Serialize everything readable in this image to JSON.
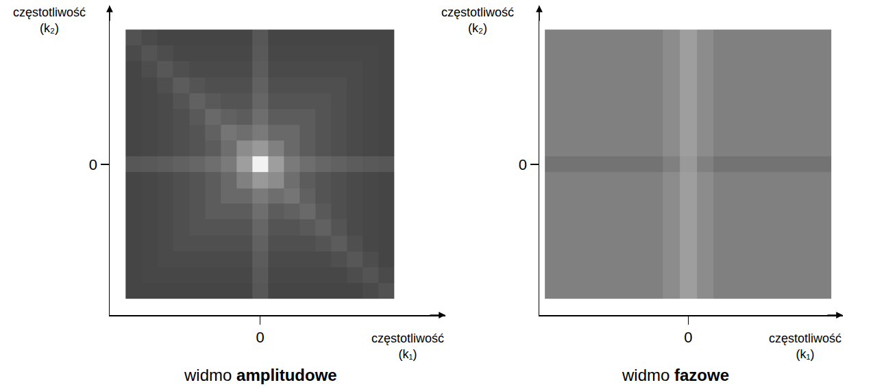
{
  "chart_data": [
    {
      "type": "heatmap",
      "title": "widmo amplitudowe",
      "xlabel": "częstotliwość (k₁)",
      "ylabel": "częstotliwość (k₂)",
      "xlim": [
        -0.56,
        0.69
      ],
      "ylim": [
        -0.56,
        0.59
      ],
      "xticks": [
        0
      ],
      "yticks": [
        0
      ],
      "grid": false,
      "zlim": [
        0,
        1
      ],
      "x": [
        -0.471,
        -0.412,
        -0.353,
        -0.294,
        -0.235,
        -0.176,
        -0.118,
        -0.059,
        0,
        0.059,
        0.118,
        0.176,
        0.235,
        0.294,
        0.353,
        0.412,
        0.471
      ],
      "y": [
        -0.471,
        -0.412,
        -0.353,
        -0.294,
        -0.235,
        -0.176,
        -0.118,
        -0.059,
        0,
        0.059,
        0.118,
        0.176,
        0.235,
        0.294,
        0.353,
        0.412,
        0.471
      ],
      "z": [
        [
          0.27,
          0.27,
          0.27,
          0.27,
          0.27,
          0.27,
          0.27,
          0.27,
          0.34,
          0.27,
          0.27,
          0.27,
          0.27,
          0.27,
          0.27,
          0.29,
          0.32
        ],
        [
          0.27,
          0.28,
          0.28,
          0.28,
          0.28,
          0.28,
          0.28,
          0.28,
          0.35,
          0.28,
          0.28,
          0.28,
          0.28,
          0.28,
          0.3,
          0.33,
          0.29
        ],
        [
          0.27,
          0.28,
          0.29,
          0.29,
          0.29,
          0.29,
          0.29,
          0.29,
          0.36,
          0.29,
          0.29,
          0.29,
          0.29,
          0.31,
          0.34,
          0.3,
          0.27
        ],
        [
          0.27,
          0.28,
          0.29,
          0.31,
          0.31,
          0.31,
          0.31,
          0.31,
          0.38,
          0.31,
          0.31,
          0.31,
          0.33,
          0.36,
          0.31,
          0.28,
          0.27
        ],
        [
          0.27,
          0.28,
          0.29,
          0.31,
          0.33,
          0.33,
          0.33,
          0.33,
          0.4,
          0.33,
          0.33,
          0.35,
          0.38,
          0.33,
          0.29,
          0.28,
          0.27
        ],
        [
          0.27,
          0.28,
          0.29,
          0.31,
          0.33,
          0.36,
          0.36,
          0.36,
          0.43,
          0.36,
          0.38,
          0.41,
          0.35,
          0.31,
          0.29,
          0.28,
          0.27
        ],
        [
          0.27,
          0.28,
          0.29,
          0.31,
          0.33,
          0.36,
          0.41,
          0.41,
          0.48,
          0.43,
          0.46,
          0.38,
          0.33,
          0.31,
          0.29,
          0.28,
          0.27
        ],
        [
          0.27,
          0.28,
          0.29,
          0.31,
          0.33,
          0.36,
          0.41,
          0.5,
          0.6,
          0.55,
          0.43,
          0.36,
          0.33,
          0.31,
          0.29,
          0.28,
          0.27
        ],
        [
          0.34,
          0.35,
          0.36,
          0.38,
          0.4,
          0.43,
          0.48,
          0.62,
          0.95,
          0.62,
          0.48,
          0.43,
          0.4,
          0.38,
          0.36,
          0.35,
          0.34
        ],
        [
          0.27,
          0.28,
          0.29,
          0.31,
          0.33,
          0.36,
          0.43,
          0.55,
          0.6,
          0.5,
          0.41,
          0.36,
          0.33,
          0.31,
          0.29,
          0.28,
          0.27
        ],
        [
          0.27,
          0.28,
          0.29,
          0.31,
          0.33,
          0.38,
          0.46,
          0.43,
          0.48,
          0.41,
          0.41,
          0.36,
          0.33,
          0.31,
          0.29,
          0.28,
          0.27
        ],
        [
          0.27,
          0.28,
          0.29,
          0.31,
          0.35,
          0.41,
          0.38,
          0.36,
          0.43,
          0.36,
          0.36,
          0.36,
          0.33,
          0.31,
          0.29,
          0.28,
          0.27
        ],
        [
          0.27,
          0.28,
          0.29,
          0.33,
          0.38,
          0.35,
          0.33,
          0.33,
          0.4,
          0.33,
          0.33,
          0.33,
          0.33,
          0.31,
          0.29,
          0.28,
          0.27
        ],
        [
          0.27,
          0.28,
          0.31,
          0.36,
          0.33,
          0.31,
          0.31,
          0.31,
          0.38,
          0.31,
          0.31,
          0.31,
          0.31,
          0.31,
          0.29,
          0.28,
          0.27
        ],
        [
          0.27,
          0.3,
          0.34,
          0.31,
          0.29,
          0.29,
          0.29,
          0.29,
          0.36,
          0.29,
          0.29,
          0.29,
          0.29,
          0.29,
          0.29,
          0.28,
          0.27
        ],
        [
          0.29,
          0.33,
          0.3,
          0.28,
          0.28,
          0.28,
          0.28,
          0.28,
          0.35,
          0.28,
          0.28,
          0.28,
          0.28,
          0.28,
          0.28,
          0.28,
          0.27
        ],
        [
          0.32,
          0.29,
          0.27,
          0.27,
          0.27,
          0.27,
          0.27,
          0.27,
          0.34,
          0.27,
          0.27,
          0.27,
          0.27,
          0.27,
          0.27,
          0.27,
          0.27
        ]
      ]
    },
    {
      "type": "heatmap",
      "title": "widmo fazowe",
      "xlabel": "częstotliwość (k₁)",
      "ylabel": "częstotliwość (k₂)",
      "xlim": [
        -0.52,
        0.54
      ],
      "ylim": [
        -0.56,
        0.59
      ],
      "xticks": [
        0
      ],
      "yticks": [
        0
      ],
      "grid": false,
      "zlim": [
        0,
        1
      ],
      "x": [
        -0.471,
        -0.412,
        -0.353,
        -0.294,
        -0.235,
        -0.176,
        -0.118,
        -0.059,
        0,
        0.059,
        0.118,
        0.176,
        0.235,
        0.294,
        0.353,
        0.412,
        0.471
      ],
      "y": [
        -0.471,
        -0.412,
        -0.353,
        -0.294,
        -0.235,
        -0.176,
        -0.118,
        -0.059,
        0,
        0.059,
        0.118,
        0.176,
        0.235,
        0.294,
        0.353,
        0.412,
        0.471
      ],
      "z": [
        [
          0.5,
          0.5,
          0.5,
          0.5,
          0.5,
          0.5,
          0.5,
          0.55,
          0.62,
          0.55,
          0.5,
          0.5,
          0.5,
          0.5,
          0.5,
          0.5,
          0.5
        ],
        [
          0.5,
          0.5,
          0.5,
          0.5,
          0.5,
          0.5,
          0.5,
          0.55,
          0.62,
          0.55,
          0.5,
          0.5,
          0.5,
          0.5,
          0.5,
          0.5,
          0.5
        ],
        [
          0.5,
          0.5,
          0.5,
          0.5,
          0.5,
          0.5,
          0.5,
          0.55,
          0.62,
          0.55,
          0.5,
          0.5,
          0.5,
          0.5,
          0.5,
          0.5,
          0.5
        ],
        [
          0.5,
          0.5,
          0.5,
          0.5,
          0.5,
          0.5,
          0.5,
          0.55,
          0.62,
          0.55,
          0.5,
          0.5,
          0.5,
          0.5,
          0.5,
          0.5,
          0.5
        ],
        [
          0.5,
          0.5,
          0.5,
          0.5,
          0.5,
          0.5,
          0.5,
          0.55,
          0.62,
          0.55,
          0.5,
          0.5,
          0.5,
          0.5,
          0.5,
          0.5,
          0.5
        ],
        [
          0.5,
          0.5,
          0.5,
          0.5,
          0.5,
          0.5,
          0.5,
          0.55,
          0.62,
          0.55,
          0.5,
          0.5,
          0.5,
          0.5,
          0.5,
          0.5,
          0.5
        ],
        [
          0.5,
          0.5,
          0.5,
          0.5,
          0.5,
          0.5,
          0.5,
          0.55,
          0.62,
          0.55,
          0.5,
          0.5,
          0.5,
          0.5,
          0.5,
          0.5,
          0.5
        ],
        [
          0.5,
          0.5,
          0.5,
          0.5,
          0.5,
          0.5,
          0.5,
          0.55,
          0.62,
          0.55,
          0.5,
          0.5,
          0.5,
          0.5,
          0.5,
          0.5,
          0.5
        ],
        [
          0.45,
          0.45,
          0.45,
          0.45,
          0.45,
          0.45,
          0.45,
          0.5,
          0.6,
          0.5,
          0.45,
          0.45,
          0.45,
          0.45,
          0.45,
          0.45,
          0.45
        ],
        [
          0.5,
          0.5,
          0.5,
          0.5,
          0.5,
          0.5,
          0.5,
          0.55,
          0.62,
          0.55,
          0.5,
          0.5,
          0.5,
          0.5,
          0.5,
          0.5,
          0.5
        ],
        [
          0.5,
          0.5,
          0.5,
          0.5,
          0.5,
          0.5,
          0.5,
          0.55,
          0.62,
          0.55,
          0.5,
          0.5,
          0.5,
          0.5,
          0.5,
          0.5,
          0.5
        ],
        [
          0.5,
          0.5,
          0.5,
          0.5,
          0.5,
          0.5,
          0.5,
          0.55,
          0.62,
          0.55,
          0.5,
          0.5,
          0.5,
          0.5,
          0.5,
          0.5,
          0.5
        ],
        [
          0.5,
          0.5,
          0.5,
          0.5,
          0.5,
          0.5,
          0.5,
          0.55,
          0.62,
          0.55,
          0.5,
          0.5,
          0.5,
          0.5,
          0.5,
          0.5,
          0.5
        ],
        [
          0.5,
          0.5,
          0.5,
          0.5,
          0.5,
          0.5,
          0.5,
          0.55,
          0.62,
          0.55,
          0.5,
          0.5,
          0.5,
          0.5,
          0.5,
          0.5,
          0.5
        ],
        [
          0.5,
          0.5,
          0.5,
          0.5,
          0.5,
          0.5,
          0.5,
          0.55,
          0.62,
          0.55,
          0.5,
          0.5,
          0.5,
          0.5,
          0.5,
          0.5,
          0.5
        ],
        [
          0.5,
          0.5,
          0.5,
          0.5,
          0.5,
          0.5,
          0.5,
          0.55,
          0.62,
          0.55,
          0.5,
          0.5,
          0.5,
          0.5,
          0.5,
          0.5,
          0.5
        ],
        [
          0.5,
          0.5,
          0.5,
          0.5,
          0.5,
          0.5,
          0.5,
          0.55,
          0.62,
          0.55,
          0.5,
          0.5,
          0.5,
          0.5,
          0.5,
          0.5,
          0.5
        ]
      ]
    }
  ]
}
